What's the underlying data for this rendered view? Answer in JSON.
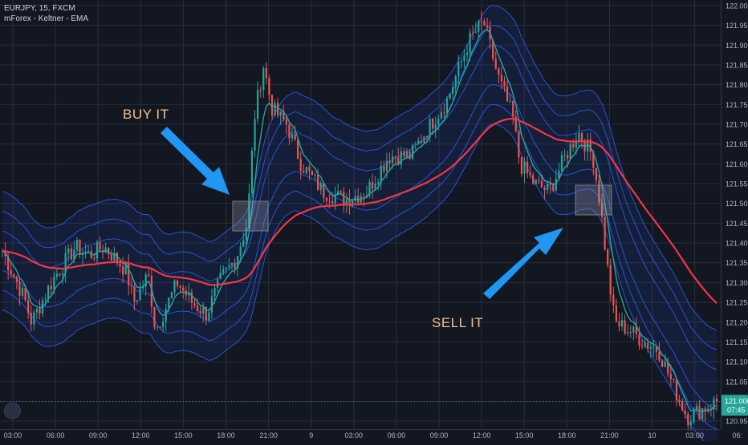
{
  "header": {
    "symbol_line": "EURJPY, 15, FXCM",
    "indicator_line": "mForex - Keltner - EMA"
  },
  "annotations": {
    "buy_label": "BUY IT",
    "sell_label": "SELL IT"
  },
  "price_badge": {
    "price": "121.000",
    "countdown": "07:45"
  },
  "colors": {
    "background": "#131722",
    "up_candle": "#26a69a",
    "down_candle": "#ef5350",
    "ema": "#f23645",
    "keltner": "#2962ff",
    "fast_ma": "#26a69a",
    "arrow": "#2196f3",
    "grid": "#2a2e39"
  },
  "chart_data": {
    "type": "candlestick",
    "symbol": "EURJPY",
    "timeframe": "15",
    "y_axis": {
      "ticks": [
        "122.000",
        "121.950",
        "121.900",
        "121.850",
        "121.800",
        "121.750",
        "121.700",
        "121.650",
        "121.600",
        "121.550",
        "121.500",
        "121.450",
        "121.400",
        "121.350",
        "121.300",
        "121.250",
        "121.200",
        "121.150",
        "121.100",
        "121.050",
        "121.000",
        "120.950"
      ],
      "range": [
        120.93,
        122.01
      ]
    },
    "x_axis": {
      "ticks": [
        "03:00",
        "06:00",
        "09:00",
        "12:00",
        "15:00",
        "18:00",
        "21:00",
        "9",
        "03:00",
        "06:00",
        "09:00",
        "12:00",
        "15:00",
        "18:00",
        "21:00",
        "10",
        "03:00",
        "06:"
      ]
    },
    "price_path": [
      {
        "t": 0,
        "p": 121.38
      },
      {
        "t": 1.5,
        "p": 121.26
      },
      {
        "t": 2,
        "p": 121.2
      },
      {
        "t": 3.5,
        "p": 121.31
      },
      {
        "t": 5,
        "p": 121.39
      },
      {
        "t": 6,
        "p": 121.37
      },
      {
        "t": 7,
        "p": 121.39
      },
      {
        "t": 8.5,
        "p": 121.33
      },
      {
        "t": 9,
        "p": 121.25
      },
      {
        "t": 10,
        "p": 121.32
      },
      {
        "t": 10.5,
        "p": 121.18
      },
      {
        "t": 12,
        "p": 121.3
      },
      {
        "t": 13,
        "p": 121.25
      },
      {
        "t": 14,
        "p": 121.22
      },
      {
        "t": 15,
        "p": 121.31
      },
      {
        "t": 16,
        "p": 121.36
      },
      {
        "t": 16.8,
        "p": 121.45
      },
      {
        "t": 17.3,
        "p": 121.72
      },
      {
        "t": 17.9,
        "p": 121.85
      },
      {
        "t": 18.5,
        "p": 121.74
      },
      {
        "t": 19.5,
        "p": 121.7
      },
      {
        "t": 20.5,
        "p": 121.6
      },
      {
        "t": 22,
        "p": 121.53
      },
      {
        "t": 23.5,
        "p": 121.51
      },
      {
        "t": 25,
        "p": 121.53
      },
      {
        "t": 26.5,
        "p": 121.62
      },
      {
        "t": 28,
        "p": 121.62
      },
      {
        "t": 29,
        "p": 121.68
      },
      {
        "t": 30.5,
        "p": 121.76
      },
      {
        "t": 32,
        "p": 121.91
      },
      {
        "t": 33,
        "p": 121.96
      },
      {
        "t": 34,
        "p": 121.82
      },
      {
        "t": 35,
        "p": 121.72
      },
      {
        "t": 35.5,
        "p": 121.6
      },
      {
        "t": 36.5,
        "p": 121.55
      },
      {
        "t": 37.5,
        "p": 121.53
      },
      {
        "t": 38.5,
        "p": 121.61
      },
      {
        "t": 39.5,
        "p": 121.68
      },
      {
        "t": 40.5,
        "p": 121.62
      },
      {
        "t": 41,
        "p": 121.5
      },
      {
        "t": 41.5,
        "p": 121.34
      },
      {
        "t": 42,
        "p": 121.2
      },
      {
        "t": 43,
        "p": 121.18
      },
      {
        "t": 44,
        "p": 121.15
      },
      {
        "t": 45,
        "p": 121.13
      },
      {
        "t": 46,
        "p": 121.04
      },
      {
        "t": 47,
        "p": 120.96
      },
      {
        "t": 48,
        "p": 120.98
      },
      {
        "t": 49,
        "p": 121.0
      }
    ]
  }
}
